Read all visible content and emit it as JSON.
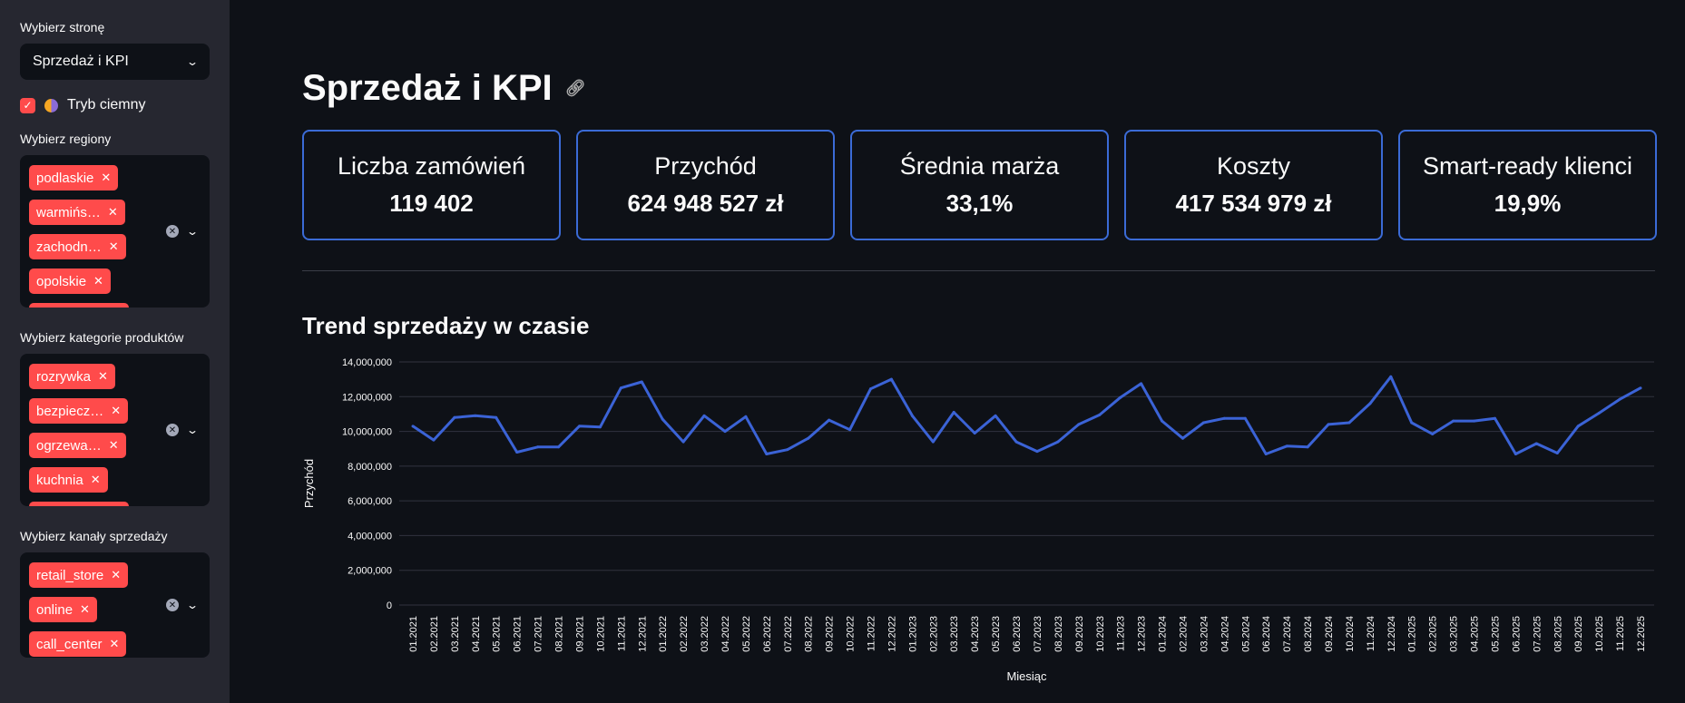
{
  "sidebar": {
    "page_label": "Wybierz stronę",
    "page_value": "Sprzedaż i KPI",
    "dark_mode_label": "Tryb ciemny",
    "regions_label": "Wybierz regiony",
    "regions": [
      "podlaskie",
      "warmińs…",
      "zachodn…",
      "opolskie"
    ],
    "categories_label": "Wybierz kategorie produktów",
    "categories": [
      "rozrywka",
      "bezpiecz…",
      "ogrzewa…",
      "kuchnia"
    ],
    "channels_label": "Wybierz kanały sprzedaży",
    "channels": [
      "retail_store",
      "online",
      "call_center"
    ]
  },
  "main": {
    "title": "Sprzedaż i KPI",
    "kpis": [
      {
        "label": "Liczba zamówień",
        "value": "119 402"
      },
      {
        "label": "Przychód",
        "value": "624 948 527 zł"
      },
      {
        "label": "Średnia marża",
        "value": "33,1%"
      },
      {
        "label": "Koszty",
        "value": "417 534 979 zł"
      },
      {
        "label": "Smart-ready klienci",
        "value": "19,9%"
      }
    ],
    "chart_title": "Trend sprzedaży w czasie"
  },
  "colors": {
    "accent": "#ff4b4b",
    "line": "#3b63d6",
    "kpi_border": "#3b6bd6"
  },
  "chart_data": {
    "type": "line",
    "title": "Trend sprzedaży w czasie",
    "xlabel": "Miesiąc",
    "ylabel": "Przychód",
    "ylim": [
      0,
      14000000
    ],
    "yticks": [
      "0",
      "2,000,000",
      "4,000,000",
      "6,000,000",
      "8,000,000",
      "10,000,000",
      "12,000,000",
      "14,000,000"
    ],
    "categories": [
      "01.2021",
      "02.2021",
      "03.2021",
      "04.2021",
      "05.2021",
      "06.2021",
      "07.2021",
      "08.2021",
      "09.2021",
      "10.2021",
      "11.2021",
      "12.2021",
      "01.2022",
      "02.2022",
      "03.2022",
      "04.2022",
      "05.2022",
      "06.2022",
      "07.2022",
      "08.2022",
      "09.2022",
      "10.2022",
      "11.2022",
      "12.2022",
      "01.2023",
      "02.2023",
      "03.2023",
      "04.2023",
      "05.2023",
      "06.2023",
      "07.2023",
      "08.2023",
      "09.2023",
      "10.2023",
      "11.2023",
      "12.2023",
      "01.2024",
      "02.2024",
      "03.2024",
      "04.2024",
      "05.2024",
      "06.2024",
      "07.2024",
      "08.2024",
      "09.2024",
      "10.2024",
      "11.2024",
      "12.2024",
      "01.2025",
      "02.2025",
      "03.2025",
      "04.2025",
      "05.2025",
      "06.2025",
      "07.2025",
      "08.2025",
      "09.2025",
      "10.2025",
      "11.2025",
      "12.2025"
    ],
    "values": [
      10300000,
      9500000,
      10800000,
      10900000,
      10800000,
      8800000,
      9100000,
      9100000,
      10300000,
      10250000,
      12500000,
      12850000,
      10700000,
      9400000,
      10900000,
      10000000,
      10850000,
      8700000,
      8950000,
      9600000,
      10650000,
      10100000,
      12450000,
      13000000,
      10900000,
      9400000,
      11100000,
      9900000,
      10900000,
      9400000,
      8850000,
      9400000,
      10400000,
      10950000,
      11950000,
      12750000,
      10600000,
      9600000,
      10500000,
      10750000,
      10750000,
      8700000,
      9150000,
      9100000,
      10400000,
      10500000,
      11600000,
      13150000,
      10500000,
      9850000,
      10600000,
      10600000,
      10750000,
      8700000,
      9300000,
      8750000,
      10300000,
      11050000,
      11850000,
      12500000
    ]
  }
}
